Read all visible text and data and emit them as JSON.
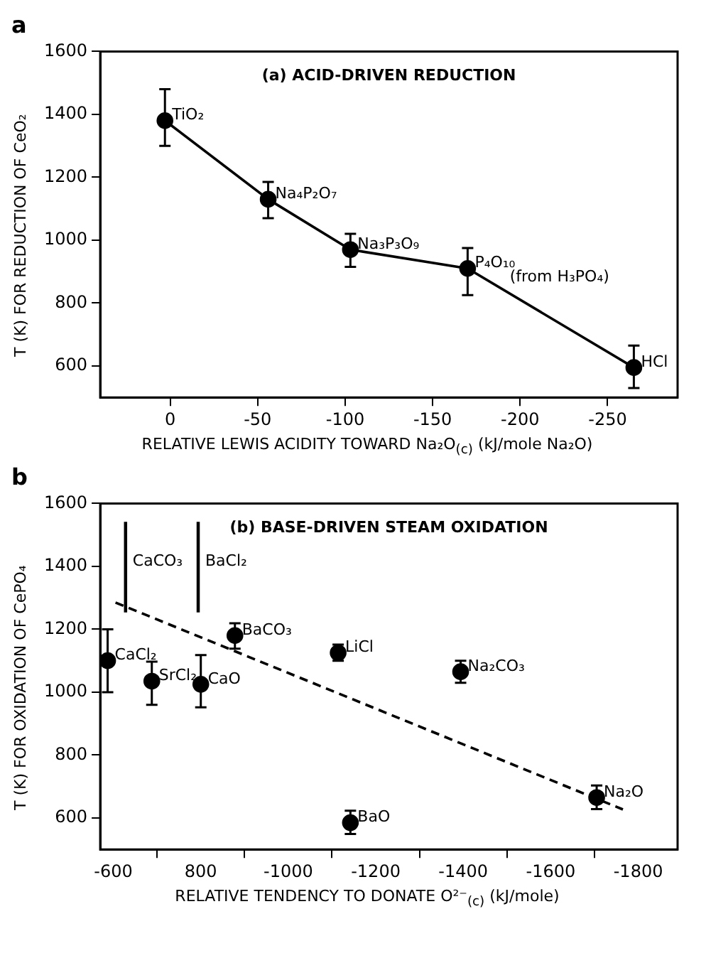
{
  "chart_data": [
    {
      "type": "line",
      "title": "a",
      "subtitle": "(a) ACID-DRIVEN REDUCTION",
      "xlabel": "RELATIVE LEWIS ACIDITY TOWARD Na₂O$_{(c)}$   (kJ/mole Na₂O)",
      "ylabel": "T  (K)  FOR REDUCTION OF CeO₂",
      "marker": "circle",
      "line_style": "solid",
      "series": [
        {
          "color": "#000000",
          "x": [
            3,
            -56,
            -103,
            -170,
            -265
          ],
          "values": [
            1380,
            1130,
            970,
            910,
            595
          ],
          "errors": [
            [
              1300,
              1480
            ],
            [
              1070,
              1185
            ],
            [
              915,
              1020
            ],
            [
              825,
              975
            ],
            [
              530,
              665
            ]
          ]
        }
      ],
      "xlim": [
        40,
        -290
      ],
      "xticks": [
        0,
        -50,
        -100,
        -150,
        -200,
        -250
      ],
      "ylim": [
        500,
        1600
      ],
      "yticks": [
        600,
        800,
        1000,
        1200,
        1400,
        1600
      ],
      "annotations": [
        {
          "text": "TiO₂",
          "x": 3,
          "y": 1380
        },
        {
          "text": "Na₄P₂O₇",
          "x": -56,
          "y": 1130
        },
        {
          "text": "Na₃P₃O₉",
          "x": -103,
          "y": 970
        },
        {
          "text": "P₄O₁₀",
          "x": -170,
          "y": 910
        },
        {
          "text": "(from H₃PO₄)",
          "x": -190,
          "y": 865
        },
        {
          "text": "HCl",
          "x": -265,
          "y": 595
        }
      ]
    },
    {
      "type": "scatter",
      "title": "b",
      "subtitle": "(b) BASE-DRIVEN STEAM OXIDATION",
      "xlabel": "RELATIVE TENDENCY TO DONATE O²⁻$_{(c)}$   (kJ/mole)",
      "ylabel": "T  (K)  FOR OXIDATION OF CePO₄",
      "marker": "circle",
      "series": [
        {
          "color": "#000000",
          "x": [
            -587,
            -688,
            -800,
            -878,
            -1114,
            -1394,
            -1142,
            -1705
          ],
          "values": [
            1100,
            1035,
            1025,
            1180,
            1125,
            1065,
            585,
            665
          ],
          "errors": [
            [
              1000,
              1200
            ],
            [
              960,
              1097
            ],
            [
              952,
              1118
            ],
            [
              1138,
              1219
            ],
            [
              1100,
              1151
            ],
            [
              1030,
              1100
            ],
            [
              549,
              623
            ],
            [
              628,
              703
            ]
          ]
        },
        {
          "type": "bar",
          "color": "#000000",
          "x": [
            -628,
            -794
          ],
          "base": [
            1255,
            1255
          ],
          "values": [
            285,
            285
          ]
        },
        {
          "type": "line",
          "color": "#000000",
          "marker": "none",
          "line_style": "dashed",
          "x": [
            -605,
            -1765
          ],
          "values": [
            1285,
            627
          ]
        }
      ],
      "xlim": [
        -570,
        -1890
      ],
      "xticks": [
        -600,
        {
          "value": -800,
          "label": "800"
        },
        -1000,
        -1200,
        -1400,
        -1600,
        -1800
      ],
      "ylim": [
        500,
        1600
      ],
      "yticks": [
        600,
        800,
        1000,
        1200,
        1400,
        1600
      ],
      "annotations": [
        {
          "text": "CaCl₂",
          "x": -587,
          "y": 1100
        },
        {
          "text": "CaCO₃",
          "x": -628,
          "y": 1400
        },
        {
          "text": "BaCl₂",
          "x": -794,
          "y": 1400
        },
        {
          "text": "SrCl₂",
          "x": -688,
          "y": 1035
        },
        {
          "text": "CaO",
          "x": -800,
          "y": 1025
        },
        {
          "text": "BaCO₃",
          "x": -878,
          "y": 1180
        },
        {
          "text": "LiCl",
          "x": -1114,
          "y": 1125
        },
        {
          "text": "Na₂CO₃",
          "x": -1394,
          "y": 1065
        },
        {
          "text": "BaO",
          "x": -1142,
          "y": 585
        },
        {
          "text": "Na₂O",
          "x": -1705,
          "y": 665
        }
      ]
    }
  ]
}
